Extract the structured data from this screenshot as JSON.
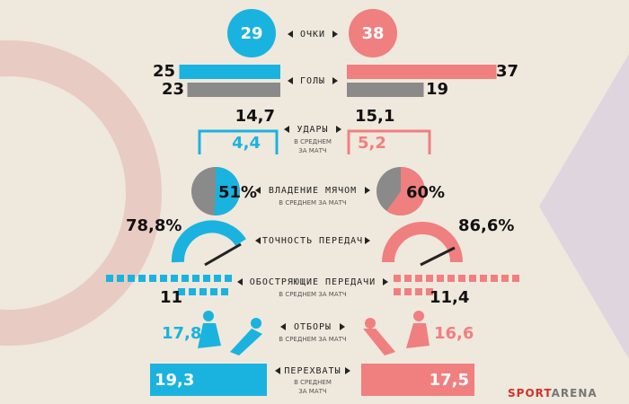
{
  "points": {
    "label": "ОЧКИ",
    "left": 29,
    "right": 38
  },
  "goals": {
    "label": "ГОЛЫ",
    "left_scored": 25,
    "left_conceded": 23,
    "right_scored": 37,
    "right_conceded": 19
  },
  "shots": {
    "label": "УДАРЫ",
    "sublabel": [
      "В СРЕДНЕМ",
      "ЗА МАТЧ"
    ],
    "left_total": "14,7",
    "left_on_target": "4,4",
    "right_total": "15,1",
    "right_on_target": "5,2"
  },
  "possession": {
    "label": "ВЛАДЕНИЕ МЯЧОМ",
    "sublabel": "В СРЕДНЕМ ЗА МАТЧ",
    "left": {
      "value": 51,
      "label": "51%"
    },
    "right": {
      "value": 60,
      "label": "60%"
    }
  },
  "passing": {
    "label": "ТОЧНОСТЬ ПЕРЕДАЧ",
    "left": "78,8%",
    "right": "86,6%"
  },
  "crosses": {
    "label": "ОБОСТРЯЮЩИЕ ПЕРЕДАЧИ",
    "sublabel": "В СРЕДНЕМ ЗА МАТЧ",
    "left": "11",
    "right": "11,4"
  },
  "tackles": {
    "label": "ОТБОРЫ",
    "sublabel": "В СРЕДНЕМ ЗА МАТЧ",
    "left": "17,8",
    "right": "16,6"
  },
  "interceptions": {
    "label": "ПЕРЕХВАТЫ",
    "sublabel": [
      "В СРЕДНЕМ",
      "ЗА МАТЧ"
    ],
    "left": "19,3",
    "right": "17,5"
  },
  "brand": [
    "SPORT",
    "ARENA"
  ]
}
